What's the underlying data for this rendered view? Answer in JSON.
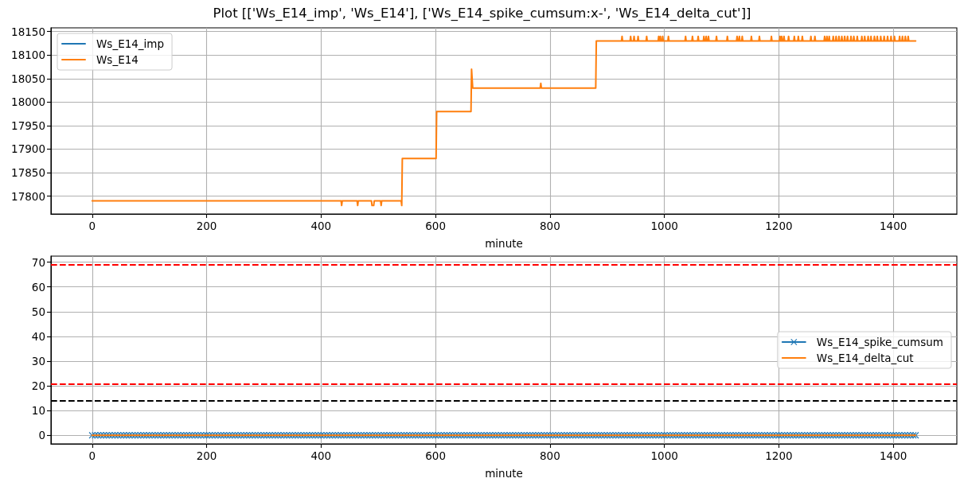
{
  "chart_data": [
    {
      "type": "line",
      "title": "Plot [['Ws_E14_imp', 'Ws_E14'], ['Ws_E14_spike_cumsum:x-', 'Ws_E14_delta_cut']]",
      "xlabel": "minute",
      "x": [
        0,
        435,
        436,
        437,
        463,
        464,
        465,
        488,
        489,
        492,
        493,
        504,
        505,
        506,
        540,
        541,
        542,
        601,
        602,
        662,
        663,
        665,
        783,
        784,
        785,
        880,
        881,
        925,
        926,
        927,
        940,
        941,
        942,
        946,
        947,
        948,
        953,
        954,
        955,
        968,
        969,
        970,
        989,
        990,
        991,
        992,
        993,
        994,
        996,
        997,
        998,
        1006,
        1007,
        1008,
        1036,
        1037,
        1038,
        1048,
        1049,
        1050,
        1058,
        1059,
        1060,
        1068,
        1069,
        1070,
        1072,
        1073,
        1074,
        1076,
        1077,
        1078,
        1090,
        1091,
        1092,
        1109,
        1110,
        1111,
        1126,
        1127,
        1128,
        1130,
        1131,
        1132,
        1135,
        1136,
        1137,
        1151,
        1152,
        1153,
        1165,
        1166,
        1167,
        1186,
        1187,
        1188,
        1201,
        1202,
        1203,
        1204,
        1205,
        1206,
        1208,
        1209,
        1210,
        1216,
        1217,
        1218,
        1226,
        1227,
        1228,
        1233,
        1234,
        1235,
        1240,
        1241,
        1242,
        1255,
        1256,
        1257,
        1262,
        1263,
        1264,
        1279,
        1280,
        1281,
        1283,
        1284,
        1285,
        1287,
        1288,
        1289,
        1294,
        1295,
        1296,
        1299,
        1300,
        1301,
        1304,
        1305,
        1306,
        1309,
        1310,
        1311,
        1314,
        1315,
        1316,
        1319,
        1320,
        1321,
        1325,
        1326,
        1327,
        1330,
        1331,
        1332,
        1336,
        1337,
        1338,
        1344,
        1345,
        1346,
        1349,
        1350,
        1351,
        1355,
        1356,
        1357,
        1360,
        1361,
        1362,
        1366,
        1367,
        1368,
        1371,
        1372,
        1373,
        1377,
        1378,
        1379,
        1383,
        1384,
        1385,
        1389,
        1390,
        1391,
        1395,
        1396,
        1397,
        1401,
        1402,
        1403,
        1410,
        1411,
        1412,
        1415,
        1416,
        1417,
        1420,
        1421,
        1422,
        1425,
        1426,
        1427,
        1439
      ],
      "series": [
        {
          "name": "Ws_E14_imp",
          "color": "#1f77b4",
          "values": [
            null,
            null,
            null,
            null,
            null,
            null,
            null,
            null,
            null,
            null,
            null,
            null,
            null,
            null,
            null,
            null,
            null,
            null,
            null,
            null,
            null,
            null,
            null,
            null,
            null,
            null,
            null,
            null,
            null,
            null,
            null,
            null,
            null,
            null,
            null,
            null,
            null,
            null,
            null,
            null,
            null,
            null,
            null,
            null,
            null,
            null,
            null,
            null,
            null,
            null,
            null,
            null,
            null,
            null,
            null,
            null,
            null,
            null,
            null,
            null,
            null,
            null,
            null,
            null,
            null,
            null,
            null,
            null,
            null,
            null,
            null,
            null,
            null,
            null,
            null,
            null,
            null,
            null,
            null,
            null,
            null,
            null,
            null,
            null,
            null,
            null,
            null,
            null,
            null,
            null,
            null,
            null,
            null,
            null,
            null,
            null,
            null,
            null,
            null,
            null,
            null,
            null,
            null,
            null,
            null,
            null,
            null,
            null,
            null,
            null,
            null,
            null,
            null,
            null,
            null,
            null,
            null,
            null,
            null,
            null,
            null,
            null,
            null,
            null,
            null,
            null,
            null,
            null,
            null,
            null,
            null,
            null,
            null,
            null,
            null,
            null,
            null,
            null,
            null,
            null,
            null,
            null,
            null,
            null,
            null,
            null,
            null,
            null,
            null,
            null,
            null,
            null,
            null,
            null,
            null,
            null,
            null,
            null,
            null,
            null,
            null,
            null,
            null,
            null,
            null,
            null,
            null,
            null,
            null,
            null,
            null,
            null,
            null,
            null,
            null,
            null,
            null,
            null,
            null,
            null,
            null,
            null,
            null,
            null,
            null,
            null,
            null,
            null,
            null,
            null,
            null,
            null,
            null,
            null,
            null,
            null,
            null,
            null,
            null,
            null,
            null,
            null,
            null,
            null,
            null
          ]
        },
        {
          "name": "Ws_E14",
          "color": "#ff7f0e",
          "values": [
            17790,
            17790,
            17780,
            17790,
            17790,
            17780,
            17790,
            17790,
            17780,
            17780,
            17790,
            17790,
            17780,
            17790,
            17790,
            17780,
            17880,
            17880,
            17980,
            17980,
            18070,
            18030,
            18030,
            18040,
            18030,
            18030,
            18130,
            18130,
            18140,
            18130,
            18130,
            18140,
            18130,
            18130,
            18140,
            18130,
            18130,
            18140,
            18130,
            18130,
            18140,
            18130,
            18130,
            18140,
            18130,
            18130,
            18140,
            18130,
            18130,
            18140,
            18130,
            18130,
            18140,
            18130,
            18130,
            18140,
            18130,
            18130,
            18140,
            18130,
            18130,
            18140,
            18130,
            18130,
            18140,
            18130,
            18130,
            18140,
            18130,
            18130,
            18140,
            18130,
            18130,
            18140,
            18130,
            18130,
            18140,
            18130,
            18130,
            18140,
            18130,
            18130,
            18140,
            18130,
            18130,
            18140,
            18130,
            18130,
            18140,
            18130,
            18130,
            18140,
            18130,
            18130,
            18140,
            18130,
            18130,
            18140,
            18130,
            18130,
            18140,
            18130,
            18130,
            18140,
            18130,
            18130,
            18140,
            18130,
            18130,
            18140,
            18130,
            18130,
            18140,
            18130,
            18130,
            18140,
            18130,
            18130,
            18140,
            18130,
            18130,
            18140,
            18130,
            18130,
            18140,
            18130,
            18130,
            18140,
            18130,
            18130,
            18140,
            18130,
            18130,
            18140,
            18130,
            18130,
            18140,
            18130,
            18130,
            18140,
            18130,
            18130,
            18140,
            18130,
            18130,
            18140,
            18130,
            18130,
            18140,
            18130,
            18130,
            18140,
            18130,
            18130,
            18140,
            18130,
            18130,
            18140,
            18130,
            18130,
            18140,
            18130,
            18130,
            18140,
            18130,
            18130,
            18140,
            18130,
            18130,
            18140,
            18130,
            18130,
            18140,
            18130,
            18130,
            18140,
            18130,
            18130,
            18140,
            18130,
            18130,
            18140,
            18130,
            18130,
            18140,
            18130,
            18130,
            18140,
            18130,
            18130,
            18140,
            18130,
            18130,
            18140,
            18130,
            18130,
            18140,
            18130,
            18130,
            18140,
            18130,
            18130,
            18140,
            18130,
            18130
          ]
        }
      ],
      "xlim": [
        -72,
        1511
      ],
      "xticks": [
        0,
        200,
        400,
        600,
        800,
        1000,
        1200,
        1400
      ],
      "ylim": [
        17762,
        18158
      ],
      "yticks": [
        17800,
        17850,
        17900,
        17950,
        18000,
        18050,
        18100,
        18150
      ],
      "grid": true,
      "legend": "top left"
    },
    {
      "type": "line",
      "xlabel": "minute",
      "series": [
        {
          "name": "Ws_E14_spike_cumsum",
          "color": "#1f77b4",
          "marker": "cross",
          "x": [
            0,
            5,
            10,
            15,
            20,
            25,
            30,
            35,
            40,
            45,
            50,
            55,
            60,
            65,
            70,
            75,
            80,
            85,
            90,
            95,
            100,
            105,
            110,
            115,
            120,
            125,
            130,
            135,
            140,
            145,
            150,
            155,
            160,
            165,
            170,
            175,
            180,
            185,
            190,
            195,
            200,
            205,
            210,
            215,
            220,
            225,
            230,
            235,
            240,
            245,
            250,
            255,
            260,
            265,
            270,
            275,
            280,
            285,
            290,
            295,
            300,
            305,
            310,
            315,
            320,
            325,
            330,
            335,
            340,
            345,
            350,
            355,
            360,
            365,
            370,
            375,
            380,
            385,
            390,
            395,
            400,
            405,
            410,
            415,
            420,
            425,
            430,
            435,
            440,
            445,
            450,
            455,
            460,
            465,
            470,
            475,
            480,
            485,
            490,
            495,
            500,
            505,
            510,
            515,
            520,
            525,
            530,
            535,
            540,
            545,
            550,
            555,
            560,
            565,
            570,
            575,
            580,
            585,
            590,
            595,
            600,
            605,
            610,
            615,
            620,
            625,
            630,
            635,
            640,
            645,
            650,
            655,
            660,
            665,
            670,
            675,
            680,
            685,
            690,
            695,
            700,
            705,
            710,
            715,
            720,
            725,
            730,
            735,
            740,
            745,
            750,
            755,
            760,
            765,
            770,
            775,
            780,
            785,
            790,
            795,
            800,
            805,
            810,
            815,
            820,
            825,
            830,
            835,
            840,
            845,
            850,
            855,
            860,
            865,
            870,
            875,
            880,
            885,
            890,
            895,
            900,
            905,
            910,
            915,
            920,
            925,
            930,
            935,
            940,
            945,
            950,
            955,
            960,
            965,
            970,
            975,
            980,
            985,
            990,
            995,
            1000,
            1005,
            1010,
            1015,
            1020,
            1025,
            1030,
            1035,
            1040,
            1045,
            1050,
            1055,
            1060,
            1065,
            1070,
            1075,
            1080,
            1085,
            1090,
            1095,
            1100,
            1105,
            1110,
            1115,
            1120,
            1125,
            1130,
            1135,
            1140,
            1145,
            1150,
            1155,
            1160,
            1165,
            1170,
            1175,
            1180,
            1185,
            1190,
            1195,
            1200,
            1205,
            1210,
            1215,
            1220,
            1225,
            1230,
            1235,
            1240,
            1245,
            1250,
            1255,
            1260,
            1265,
            1270,
            1275,
            1280,
            1285,
            1290,
            1295,
            1300,
            1305,
            1310,
            1315,
            1320,
            1325,
            1330,
            1335,
            1340,
            1345,
            1350,
            1355,
            1360,
            1365,
            1370,
            1375,
            1380,
            1385,
            1390,
            1395,
            1400,
            1405,
            1410,
            1415,
            1420,
            1425,
            1430,
            1435,
            1439
          ],
          "values": [
            0,
            0,
            0,
            0,
            0,
            0,
            0,
            0,
            0,
            0,
            0,
            0,
            0,
            0,
            0,
            0,
            0,
            0,
            0,
            0,
            0,
            0,
            0,
            0,
            0,
            0,
            0,
            0,
            0,
            0,
            0,
            0,
            0,
            0,
            0,
            0,
            0,
            0,
            0,
            0,
            0,
            0,
            0,
            0,
            0,
            0,
            0,
            0,
            0,
            0,
            0,
            0,
            0,
            0,
            0,
            0,
            0,
            0,
            0,
            0,
            0,
            0,
            0,
            0,
            0,
            0,
            0,
            0,
            0,
            0,
            0,
            0,
            0,
            0,
            0,
            0,
            0,
            0,
            0,
            0,
            0,
            0,
            0,
            0,
            0,
            0,
            0,
            0,
            0,
            0,
            0,
            0,
            0,
            0,
            0,
            0,
            0,
            0,
            0,
            0,
            0,
            0,
            0,
            0,
            0,
            0,
            0,
            0,
            0,
            0,
            0,
            0,
            0,
            0,
            0,
            0,
            0,
            0,
            0,
            0,
            0,
            0,
            0,
            0,
            0,
            0,
            0,
            0,
            0,
            0,
            0,
            0,
            0,
            0,
            0,
            0,
            0,
            0,
            0,
            0,
            0,
            0,
            0,
            0,
            0,
            0,
            0,
            0,
            0,
            0,
            0,
            0,
            0,
            0,
            0,
            0,
            0,
            0,
            0,
            0,
            0,
            0,
            0,
            0,
            0,
            0,
            0,
            0,
            0,
            0,
            0,
            0,
            0,
            0,
            0,
            0,
            0,
            0,
            0,
            0,
            0,
            0,
            0,
            0,
            0,
            0,
            0,
            0,
            0,
            0,
            0,
            0,
            0,
            0,
            0,
            0,
            0,
            0,
            0,
            0,
            0,
            0,
            0,
            0,
            0,
            0,
            0,
            0,
            0,
            0,
            0,
            0,
            0,
            0,
            0,
            0,
            0,
            0,
            0,
            0,
            0,
            0,
            0,
            0,
            0,
            0,
            0,
            0,
            0,
            0,
            0,
            0,
            0,
            0,
            0,
            0,
            0,
            0,
            0,
            0,
            0,
            0,
            0,
            0,
            0,
            0,
            0,
            0,
            0,
            0,
            0,
            0,
            0,
            0,
            0,
            0,
            0,
            0,
            0,
            0,
            0,
            0,
            0,
            0,
            0,
            0,
            0,
            0,
            0,
            0,
            0,
            0,
            0,
            0,
            0,
            0,
            0,
            0,
            0,
            0,
            0,
            0,
            0,
            0,
            0,
            0,
            0,
            0,
            0
          ]
        },
        {
          "name": "Ws_E14_delta_cut",
          "color": "#ff7f0e",
          "x": [
            0,
            1439
          ],
          "values": [
            0,
            0
          ]
        }
      ],
      "xlim": [
        -72,
        1511
      ],
      "xticks": [
        0,
        200,
        400,
        600,
        800,
        1000,
        1200,
        1400
      ],
      "ylim": [
        -3.45,
        72.45
      ],
      "yticks": [
        0,
        10,
        20,
        30,
        40,
        50,
        60,
        70
      ],
      "ref_lines": [
        {
          "axis": "y",
          "value": 69,
          "color": "#ff0000",
          "line_style": "dashed"
        },
        {
          "axis": "y",
          "value": 20.7,
          "color": "#ff0000",
          "line_style": "dashed"
        },
        {
          "axis": "y",
          "value": 14,
          "color": "#000000",
          "line_style": "dashed"
        }
      ],
      "grid": true,
      "legend": "right"
    }
  ]
}
